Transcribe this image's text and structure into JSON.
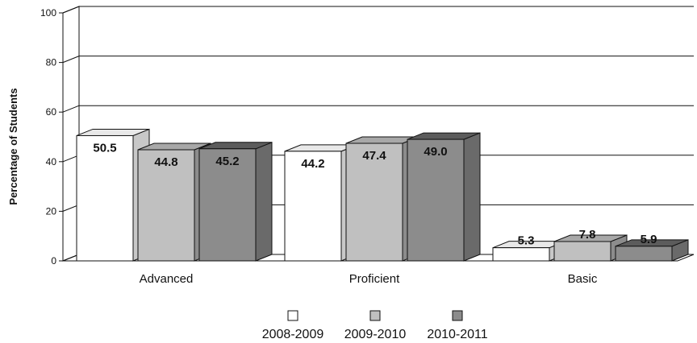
{
  "chart_data": {
    "type": "bar",
    "ylabel": "Percentage of Students",
    "xlabel": "",
    "title": "",
    "ylim": [
      0,
      100
    ],
    "yticks": [
      0,
      20,
      40,
      60,
      80,
      100
    ],
    "grid": true,
    "legend_position": "bottom-center",
    "categories": [
      "Advanced",
      "Proficient",
      "Basic"
    ],
    "series": [
      {
        "name": "2008-2009",
        "values": [
          50.5,
          44.2,
          5.3
        ],
        "labels": [
          "50.5",
          "44.2",
          "5.3"
        ],
        "color": "#ffffff",
        "side_color": "#c8c8c8",
        "top_color": "#e8e8e8"
      },
      {
        "name": "2009-2010",
        "values": [
          44.8,
          47.4,
          7.8
        ],
        "labels": [
          "44.8",
          "47.4",
          "7.8"
        ],
        "color": "#c0c0c0",
        "side_color": "#8c8c8c",
        "top_color": "#a8a8a8"
      },
      {
        "name": "2010-2011",
        "values": [
          45.2,
          49.0,
          5.9
        ],
        "labels": [
          "45.2",
          "49.0",
          "5.9"
        ],
        "color": "#8c8c8c",
        "side_color": "#6a6a6a",
        "top_color": "#5c5c5c"
      }
    ]
  }
}
